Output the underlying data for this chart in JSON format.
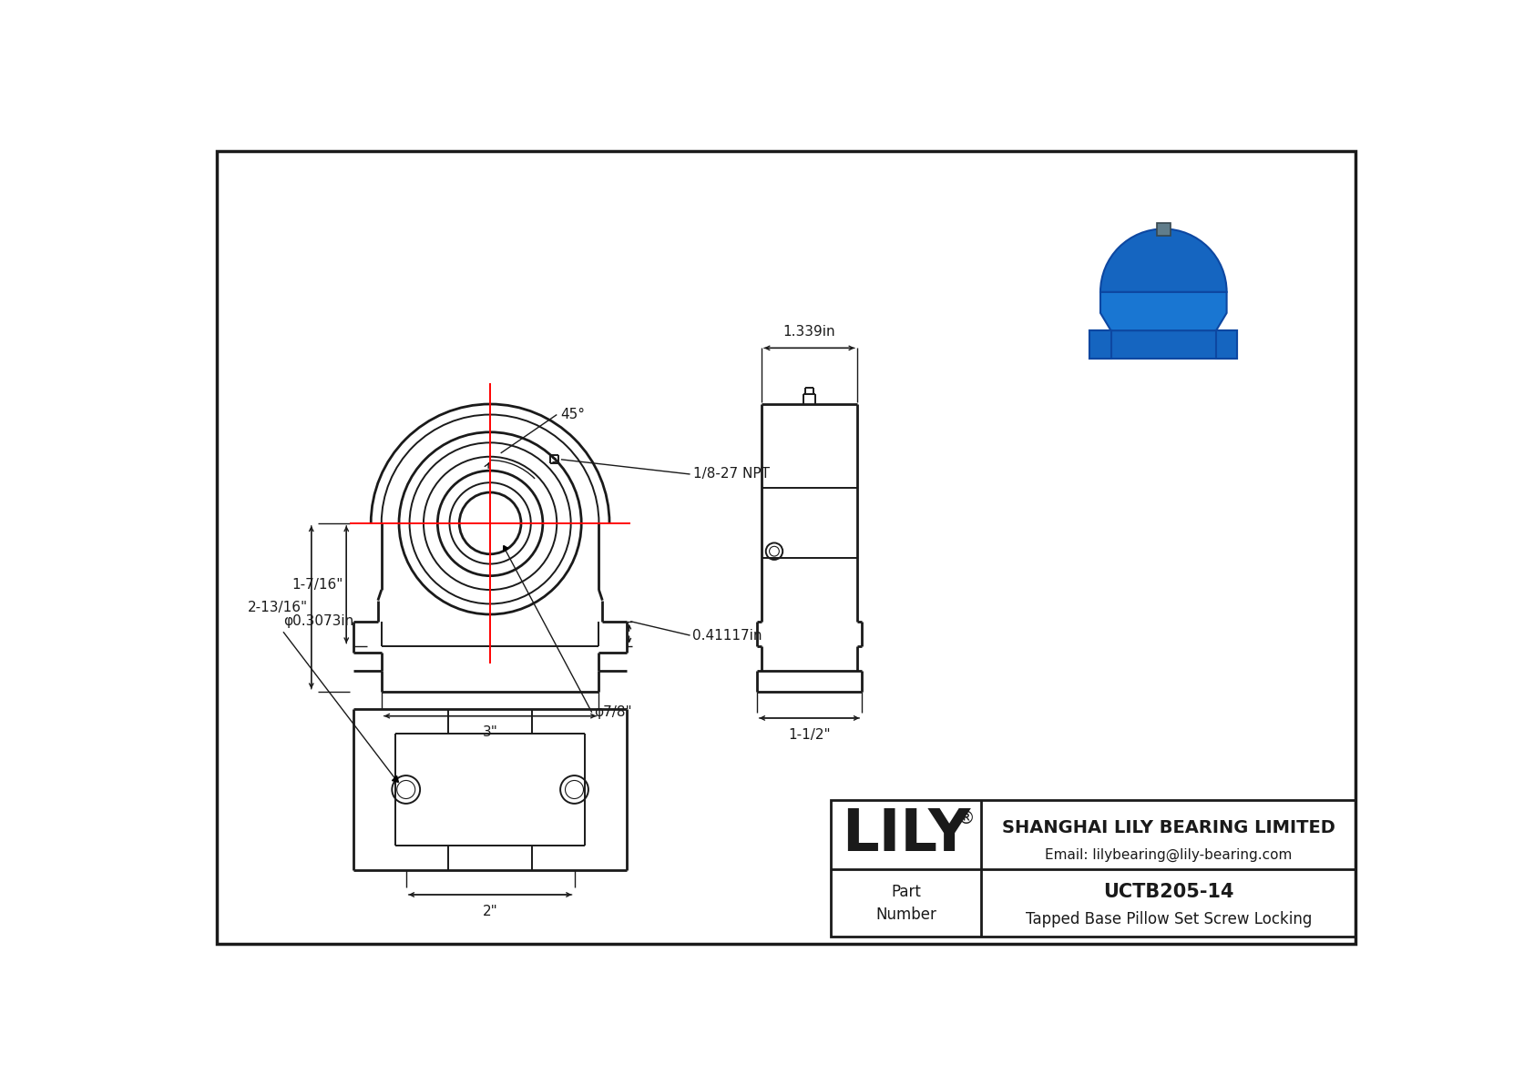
{
  "bg_color": "#ffffff",
  "line_color": "#1a1a1a",
  "red_line_color": "#ff0000",
  "company": "SHANGHAI LILY BEARING LIMITED",
  "email": "Email: lilybearing@lily-bearing.com",
  "part_number": "UCTB205-14",
  "part_desc": "Tapped Base Pillow Set Screw Locking",
  "lily_text": "LILY",
  "dim_45": "45°",
  "dim_npt": "1/8-27 NPT",
  "dim_top": "2-13/16\"",
  "dim_mid": "1-7/16\"",
  "dim_3": "3\"",
  "dim_phi78": "φ7/8\"",
  "dim_041": "0.41117in",
  "dim_phi03": "φ0.3073in",
  "dim_2": "2\"",
  "dim_right_top": "1.339in",
  "dim_right_bot": "1-1/2\""
}
